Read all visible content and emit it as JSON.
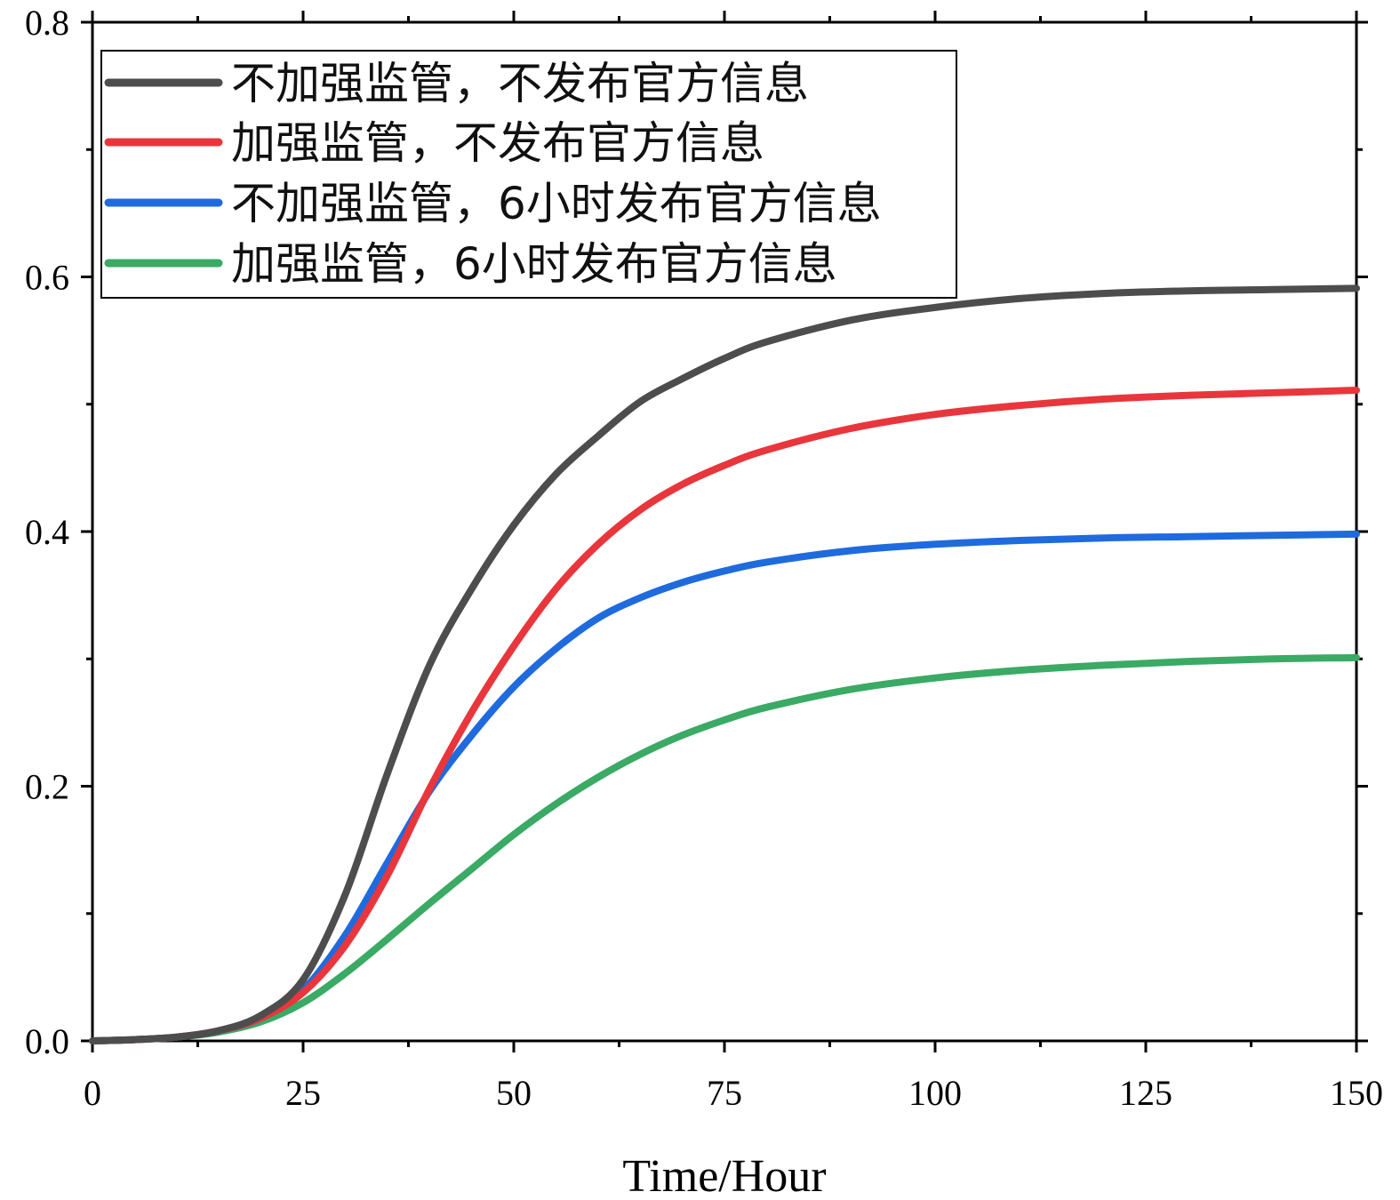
{
  "chart_data": {
    "type": "line",
    "title": "",
    "xlabel": "Time/Hour",
    "ylabel": "",
    "xlim": [
      0,
      150
    ],
    "ylim": [
      0,
      0.8
    ],
    "x_ticks": [
      "0",
      "25",
      "50",
      "75",
      "100",
      "125",
      "150"
    ],
    "y_ticks": [
      "0.0",
      "0.2",
      "0.4",
      "0.6",
      "0.8"
    ],
    "grid": false,
    "legend_position": "top-left",
    "x": [
      0,
      5,
      10,
      15,
      20,
      25,
      30,
      35,
      40,
      45,
      50,
      55,
      60,
      65,
      70,
      75,
      80,
      90,
      100,
      110,
      120,
      130,
      140,
      150
    ],
    "series": [
      {
        "name": "不加强监管，不发布官方信息",
        "color": "#4d4d4d",
        "values": [
          0,
          0.001,
          0.003,
          0.008,
          0.02,
          0.048,
          0.115,
          0.21,
          0.295,
          0.355,
          0.405,
          0.445,
          0.475,
          0.502,
          0.52,
          0.536,
          0.549,
          0.566,
          0.576,
          0.583,
          0.587,
          0.589,
          0.59,
          0.591
        ]
      },
      {
        "name": "加强监管，不发布官方信息",
        "color": "#e8363c",
        "values": [
          0,
          0.001,
          0.003,
          0.008,
          0.018,
          0.038,
          0.075,
          0.13,
          0.198,
          0.258,
          0.31,
          0.355,
          0.39,
          0.417,
          0.437,
          0.452,
          0.464,
          0.481,
          0.492,
          0.499,
          0.504,
          0.507,
          0.509,
          0.511
        ]
      },
      {
        "name": "不加强监管，6小时发布官方信息",
        "color": "#1f6bde",
        "values": [
          0,
          0.001,
          0.003,
          0.008,
          0.018,
          0.04,
          0.083,
          0.14,
          0.196,
          0.24,
          0.278,
          0.308,
          0.332,
          0.348,
          0.36,
          0.369,
          0.376,
          0.385,
          0.39,
          0.393,
          0.395,
          0.396,
          0.397,
          0.398
        ]
      },
      {
        "name": "加强监管，6小时发布官方信息",
        "color": "#3aaa65",
        "values": [
          0,
          0.001,
          0.003,
          0.007,
          0.015,
          0.03,
          0.053,
          0.08,
          0.108,
          0.135,
          0.162,
          0.186,
          0.207,
          0.225,
          0.24,
          0.252,
          0.262,
          0.276,
          0.285,
          0.291,
          0.295,
          0.298,
          0.3,
          0.301
        ]
      }
    ]
  }
}
